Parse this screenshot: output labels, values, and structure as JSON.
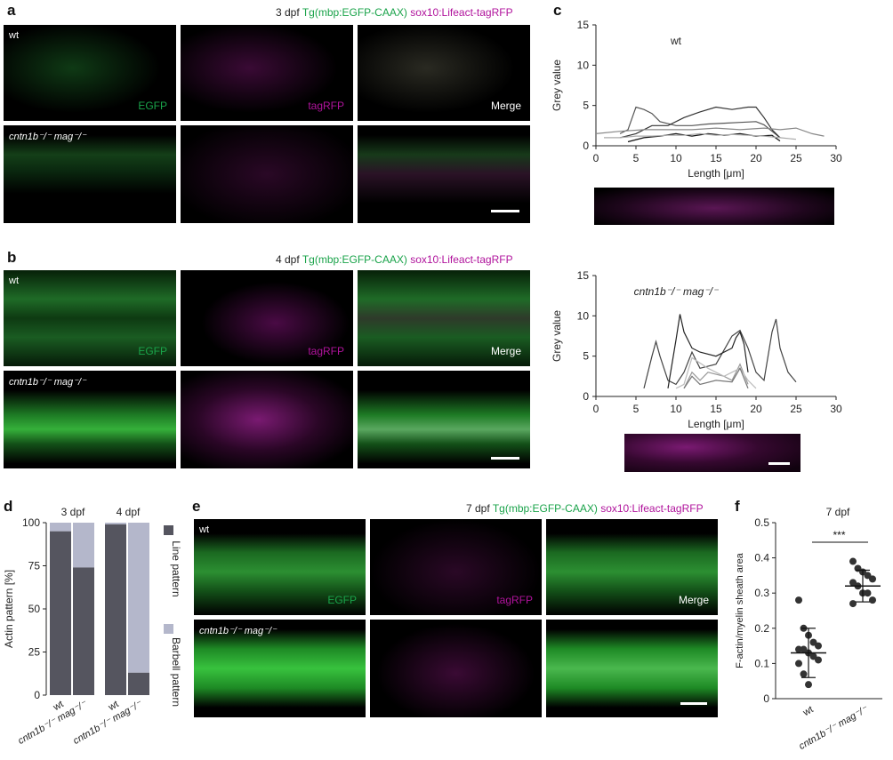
{
  "panels": {
    "a": {
      "label": "a",
      "time": "3 dpf",
      "gfp": "Tg(mbp:EGFP-CAAX)",
      "rfp": "sox10:Lifeact-tagRFP",
      "rows": [
        {
          "genotype": "wt"
        },
        {
          "genotype": "cntn1b⁻/⁻ mag⁻/⁻"
        }
      ],
      "channels": [
        "EGFP",
        "tagRFP",
        "Merge"
      ]
    },
    "b": {
      "label": "b",
      "time": "4 dpf",
      "gfp": "Tg(mbp:EGFP-CAAX)",
      "rfp": "sox10:Lifeact-tagRFP",
      "rows": [
        {
          "genotype": "wt"
        },
        {
          "genotype": "cntn1b⁻/⁻ mag⁻/⁻"
        }
      ],
      "channels": [
        "EGFP",
        "tagRFP",
        "Merge"
      ]
    },
    "e": {
      "label": "e",
      "time": "7 dpf",
      "gfp": "Tg(mbp:EGFP-CAAX)",
      "rfp": "sox10:Lifeact-tagRFP",
      "rows": [
        {
          "genotype": "wt"
        },
        {
          "genotype": "cntn1b⁻/⁻ mag⁻/⁻"
        }
      ],
      "channels": [
        "EGFP",
        "tagRFP",
        "Merge"
      ]
    },
    "c": {
      "label": "c"
    },
    "d": {
      "label": "d"
    },
    "f": {
      "label": "f"
    }
  },
  "chart_data": [
    {
      "id": "c-top",
      "type": "line",
      "title": "wt",
      "xlabel": "Length [μm]",
      "ylabel": "Grey value",
      "xlim": [
        0,
        30
      ],
      "ylim": [
        0,
        15
      ],
      "xticks": [
        0,
        5,
        10,
        15,
        20,
        25,
        30
      ],
      "yticks": [
        0,
        5,
        10,
        15
      ],
      "series": [
        {
          "color": "#555555",
          "x": [
            3,
            4,
            5,
            6,
            7,
            8,
            10,
            12,
            14,
            16,
            18,
            20,
            21,
            22,
            23
          ],
          "y": [
            1.5,
            2,
            4.8,
            4.5,
            4,
            3,
            2.5,
            2.5,
            2.7,
            2.8,
            2.9,
            3,
            2.6,
            1.8,
            1.0
          ]
        },
        {
          "color": "#333333",
          "x": [
            3,
            5,
            7,
            9,
            11,
            13,
            15,
            17,
            19,
            20,
            21,
            22,
            23
          ],
          "y": [
            1.0,
            1.5,
            2.5,
            2.5,
            3.5,
            4.2,
            4.8,
            4.5,
            4.8,
            4.8,
            3.5,
            2,
            1.0
          ]
        },
        {
          "color": "#888888",
          "x": [
            0,
            3,
            6,
            9,
            12,
            15,
            18,
            21,
            23,
            25,
            27,
            28.5
          ],
          "y": [
            1.5,
            1.8,
            2.0,
            2.0,
            2.0,
            2.2,
            2.0,
            2.2,
            2.0,
            2.2,
            1.5,
            1.2
          ]
        },
        {
          "color": "#111111",
          "x": [
            4,
            6,
            8,
            10,
            12,
            14,
            16,
            18,
            20,
            22,
            23
          ],
          "y": [
            0.5,
            1,
            1.2,
            1.5,
            1.2,
            1.5,
            1.3,
            1.5,
            1.2,
            1.3,
            0.6
          ]
        },
        {
          "color": "#aaaaaa",
          "x": [
            1,
            3,
            5,
            7,
            9,
            11,
            13,
            15,
            17,
            19,
            21,
            23,
            25
          ],
          "y": [
            1,
            1,
            1.2,
            1.2,
            1.3,
            1.3,
            1.5,
            1.3,
            1.4,
            1.3,
            1.2,
            1.0,
            0.8
          ]
        }
      ]
    },
    {
      "id": "c-bottom",
      "type": "line",
      "title": "cntn1b⁻/⁻ mag⁻/⁻",
      "xlabel": "Length [μm]",
      "ylabel": "Grey value",
      "xlim": [
        0,
        30
      ],
      "ylim": [
        0,
        15
      ],
      "xticks": [
        0,
        5,
        10,
        15,
        20,
        25,
        30
      ],
      "yticks": [
        0,
        5,
        10,
        15
      ],
      "series": [
        {
          "color": "#444444",
          "x": [
            6,
            7,
            7.5,
            8,
            9,
            10,
            11,
            12,
            13,
            15,
            17,
            18,
            19,
            20,
            21,
            22,
            22.5,
            23,
            24,
            25
          ],
          "y": [
            1,
            5,
            6.8,
            5,
            2,
            1.5,
            3,
            5.5,
            3.5,
            4,
            7.5,
            8.2,
            6,
            3,
            2,
            8,
            9.6,
            6,
            3,
            1.8
          ]
        },
        {
          "color": "#222222",
          "x": [
            9,
            10,
            10.5,
            11,
            12,
            13,
            15,
            17,
            17.5,
            18,
            18.5,
            19
          ],
          "y": [
            1,
            7,
            10.2,
            8,
            6,
            5.5,
            5,
            6,
            7.3,
            8,
            6.5,
            3
          ]
        },
        {
          "color": "#999999",
          "x": [
            11,
            12,
            13,
            14,
            16,
            17,
            18,
            19
          ],
          "y": [
            1,
            3,
            2,
            3,
            2.5,
            2,
            4,
            1.5
          ]
        },
        {
          "color": "#bbbbbb",
          "x": [
            10,
            11,
            12,
            14,
            16,
            18,
            19,
            20
          ],
          "y": [
            1,
            1.5,
            4.8,
            3.5,
            2.5,
            3.5,
            2,
            1
          ]
        },
        {
          "color": "#777777",
          "x": [
            11,
            12,
            13,
            15,
            17,
            18,
            19
          ],
          "y": [
            1,
            2.5,
            1.5,
            2,
            1.8,
            3.5,
            1
          ]
        }
      ]
    },
    {
      "id": "d",
      "type": "bar",
      "ylabel": "Actin pattern [%]",
      "ylim": [
        0,
        100
      ],
      "yticks": [
        0,
        25,
        50,
        75,
        100
      ],
      "groups": [
        "3 dpf",
        "4 dpf"
      ],
      "categories": [
        "wt",
        "cntn1b⁻/⁻ mag⁻/⁻",
        "wt",
        "cntn1b⁻/⁻ mag⁻/⁻"
      ],
      "series": [
        {
          "name": "Line pattern",
          "color": "#55555f",
          "values": [
            95,
            74,
            99,
            13
          ]
        },
        {
          "name": "Barbell pattern",
          "color": "#b4b7cb",
          "values": [
            5,
            26,
            1,
            87
          ]
        }
      ]
    },
    {
      "id": "f",
      "type": "scatter",
      "title": "7 dpf",
      "ylabel": "F-actin/myelin sheath area",
      "ylim": [
        0,
        0.5
      ],
      "yticks": [
        0,
        0.1,
        0.2,
        0.3,
        0.4,
        0.5
      ],
      "categories": [
        "wt",
        "cntn1b⁻/⁻ mag⁻/⁻"
      ],
      "significance": "***",
      "series": [
        {
          "name": "wt",
          "mean": 0.13,
          "sd": 0.07,
          "values": [
            0.28,
            0.2,
            0.18,
            0.16,
            0.15,
            0.14,
            0.14,
            0.13,
            0.12,
            0.11,
            0.1,
            0.07,
            0.04
          ]
        },
        {
          "name": "cntn1b⁻/⁻ mag⁻/⁻",
          "mean": 0.32,
          "sd": 0.045,
          "values": [
            0.39,
            0.37,
            0.36,
            0.35,
            0.34,
            0.33,
            0.32,
            0.3,
            0.3,
            0.28,
            0.27
          ]
        }
      ]
    }
  ]
}
